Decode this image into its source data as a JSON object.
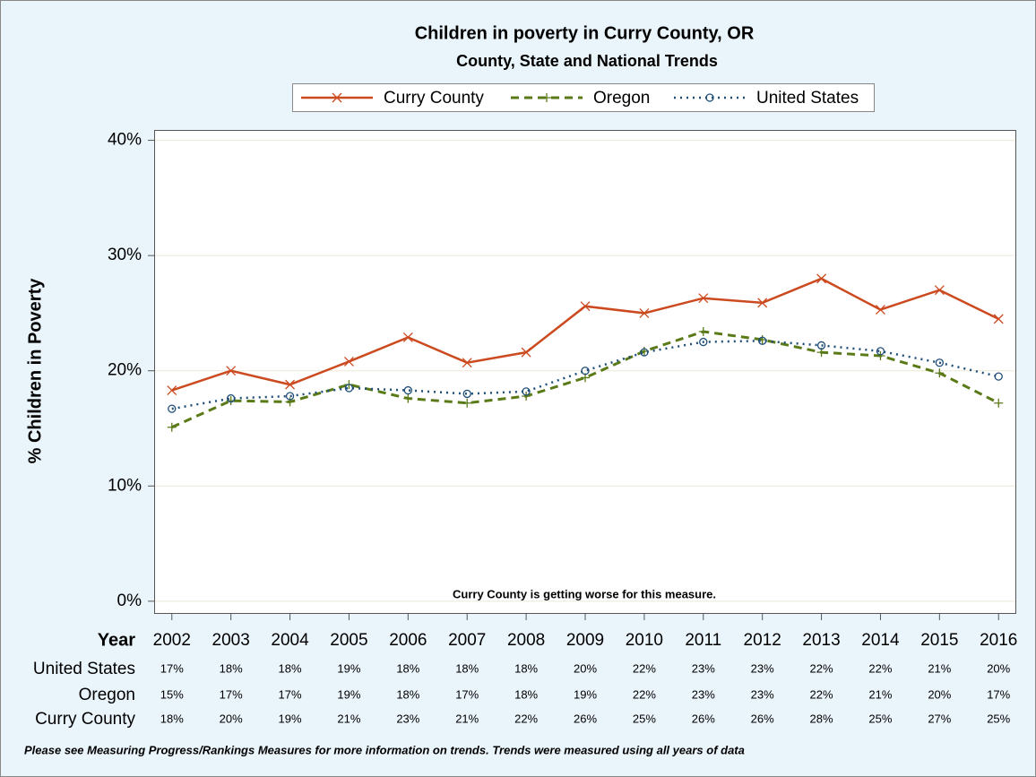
{
  "chart_data": {
    "type": "line",
    "title": "Children in poverty in Curry County, OR",
    "subtitle": "County, State and National Trends",
    "y_label": "% Children in Poverty",
    "x_label": "Year",
    "annotation": "Curry County is getting worse for this measure.",
    "footnote": "Please see Measuring Progress/Rankings Measures for more information on trends. Trends were measured using all years of data",
    "x": [
      2002,
      2003,
      2004,
      2005,
      2006,
      2007,
      2008,
      2009,
      2010,
      2011,
      2012,
      2013,
      2014,
      2015,
      2016
    ],
    "xlim": [
      2001.7,
      2016.3
    ],
    "xticks": [
      2002,
      2003,
      2004,
      2005,
      2006,
      2007,
      2008,
      2009,
      2010,
      2011,
      2012,
      2013,
      2014,
      2015,
      2016
    ],
    "ylim": [
      -1.1,
      40.9
    ],
    "yticks": [
      {
        "value": 0,
        "label": "0%"
      },
      {
        "value": 10,
        "label": "10%"
      },
      {
        "value": 20,
        "label": "20%"
      },
      {
        "value": 30,
        "label": "30%"
      },
      {
        "value": 40,
        "label": "40%"
      }
    ],
    "grid": true,
    "legend": "top",
    "series": [
      {
        "name": "Curry County",
        "color": "#cc4a1f",
        "marker": "x",
        "dash": "solid",
        "values": [
          18.3,
          20.0,
          18.8,
          20.8,
          22.9,
          20.7,
          21.6,
          25.6,
          25.0,
          26.3,
          25.9,
          28.0,
          25.3,
          27.0,
          24.5
        ],
        "value_labels": [
          "18%",
          "20%",
          "19%",
          "21%",
          "23%",
          "21%",
          "22%",
          "26%",
          "25%",
          "26%",
          "26%",
          "28%",
          "25%",
          "27%",
          "25%"
        ]
      },
      {
        "name": "Oregon",
        "color": "#5a7a18",
        "marker": "plus",
        "dash": "dashed",
        "values": [
          15.1,
          17.4,
          17.3,
          18.8,
          17.6,
          17.2,
          17.8,
          19.4,
          21.7,
          23.4,
          22.7,
          21.6,
          21.3,
          19.8,
          17.2
        ],
        "value_labels": [
          "15%",
          "17%",
          "17%",
          "19%",
          "18%",
          "17%",
          "18%",
          "19%",
          "22%",
          "23%",
          "23%",
          "22%",
          "21%",
          "20%",
          "17%"
        ]
      },
      {
        "name": "United States",
        "color": "#1f4e79",
        "marker": "circle",
        "dash": "dotted",
        "values": [
          16.7,
          17.6,
          17.8,
          18.5,
          18.3,
          18.0,
          18.2,
          20.0,
          21.6,
          22.5,
          22.6,
          22.2,
          21.7,
          20.7,
          19.5
        ],
        "value_labels": [
          "17%",
          "18%",
          "18%",
          "19%",
          "18%",
          "18%",
          "18%",
          "20%",
          "22%",
          "23%",
          "23%",
          "22%",
          "22%",
          "21%",
          "20%"
        ]
      }
    ]
  }
}
